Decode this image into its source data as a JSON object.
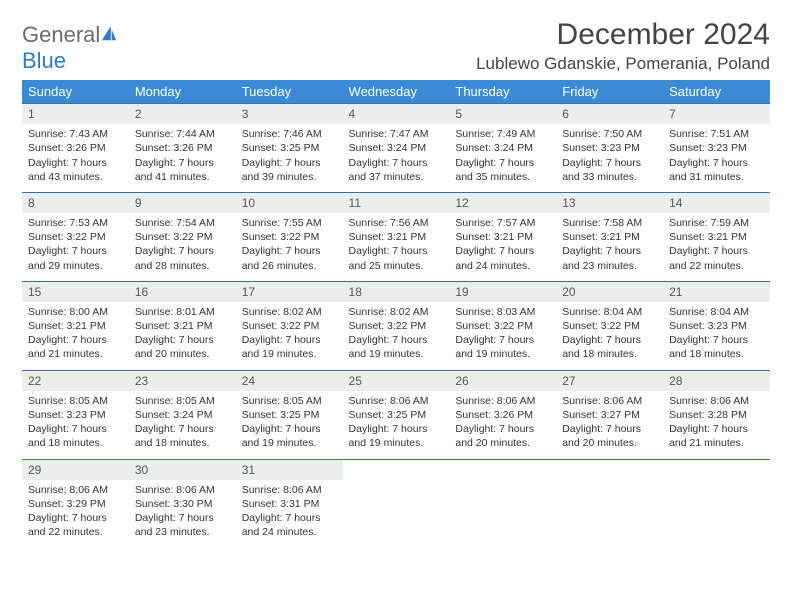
{
  "logo": {
    "part1": "General",
    "part2": "Blue"
  },
  "title": "December 2024",
  "location": "Lublewo Gdanskie, Pomerania, Poland",
  "colors": {
    "header_bg": "#3b8bd4",
    "header_text": "#ffffff",
    "daynum_bg": "#eceded",
    "row_border": "#3b6fa0",
    "logo_gray": "#6b6b6b",
    "logo_blue": "#2f7bc4",
    "text": "#333333"
  },
  "weekdays": [
    "Sunday",
    "Monday",
    "Tuesday",
    "Wednesday",
    "Thursday",
    "Friday",
    "Saturday"
  ],
  "weeks": [
    [
      {
        "n": "1",
        "sr": "7:43 AM",
        "ss": "3:26 PM",
        "dl": "7 hours and 43 minutes."
      },
      {
        "n": "2",
        "sr": "7:44 AM",
        "ss": "3:26 PM",
        "dl": "7 hours and 41 minutes."
      },
      {
        "n": "3",
        "sr": "7:46 AM",
        "ss": "3:25 PM",
        "dl": "7 hours and 39 minutes."
      },
      {
        "n": "4",
        "sr": "7:47 AM",
        "ss": "3:24 PM",
        "dl": "7 hours and 37 minutes."
      },
      {
        "n": "5",
        "sr": "7:49 AM",
        "ss": "3:24 PM",
        "dl": "7 hours and 35 minutes."
      },
      {
        "n": "6",
        "sr": "7:50 AM",
        "ss": "3:23 PM",
        "dl": "7 hours and 33 minutes."
      },
      {
        "n": "7",
        "sr": "7:51 AM",
        "ss": "3:23 PM",
        "dl": "7 hours and 31 minutes."
      }
    ],
    [
      {
        "n": "8",
        "sr": "7:53 AM",
        "ss": "3:22 PM",
        "dl": "7 hours and 29 minutes."
      },
      {
        "n": "9",
        "sr": "7:54 AM",
        "ss": "3:22 PM",
        "dl": "7 hours and 28 minutes."
      },
      {
        "n": "10",
        "sr": "7:55 AM",
        "ss": "3:22 PM",
        "dl": "7 hours and 26 minutes."
      },
      {
        "n": "11",
        "sr": "7:56 AM",
        "ss": "3:21 PM",
        "dl": "7 hours and 25 minutes."
      },
      {
        "n": "12",
        "sr": "7:57 AM",
        "ss": "3:21 PM",
        "dl": "7 hours and 24 minutes."
      },
      {
        "n": "13",
        "sr": "7:58 AM",
        "ss": "3:21 PM",
        "dl": "7 hours and 23 minutes."
      },
      {
        "n": "14",
        "sr": "7:59 AM",
        "ss": "3:21 PM",
        "dl": "7 hours and 22 minutes."
      }
    ],
    [
      {
        "n": "15",
        "sr": "8:00 AM",
        "ss": "3:21 PM",
        "dl": "7 hours and 21 minutes."
      },
      {
        "n": "16",
        "sr": "8:01 AM",
        "ss": "3:21 PM",
        "dl": "7 hours and 20 minutes."
      },
      {
        "n": "17",
        "sr": "8:02 AM",
        "ss": "3:22 PM",
        "dl": "7 hours and 19 minutes."
      },
      {
        "n": "18",
        "sr": "8:02 AM",
        "ss": "3:22 PM",
        "dl": "7 hours and 19 minutes."
      },
      {
        "n": "19",
        "sr": "8:03 AM",
        "ss": "3:22 PM",
        "dl": "7 hours and 19 minutes."
      },
      {
        "n": "20",
        "sr": "8:04 AM",
        "ss": "3:22 PM",
        "dl": "7 hours and 18 minutes."
      },
      {
        "n": "21",
        "sr": "8:04 AM",
        "ss": "3:23 PM",
        "dl": "7 hours and 18 minutes."
      }
    ],
    [
      {
        "n": "22",
        "sr": "8:05 AM",
        "ss": "3:23 PM",
        "dl": "7 hours and 18 minutes."
      },
      {
        "n": "23",
        "sr": "8:05 AM",
        "ss": "3:24 PM",
        "dl": "7 hours and 18 minutes."
      },
      {
        "n": "24",
        "sr": "8:05 AM",
        "ss": "3:25 PM",
        "dl": "7 hours and 19 minutes."
      },
      {
        "n": "25",
        "sr": "8:06 AM",
        "ss": "3:25 PM",
        "dl": "7 hours and 19 minutes."
      },
      {
        "n": "26",
        "sr": "8:06 AM",
        "ss": "3:26 PM",
        "dl": "7 hours and 20 minutes."
      },
      {
        "n": "27",
        "sr": "8:06 AM",
        "ss": "3:27 PM",
        "dl": "7 hours and 20 minutes."
      },
      {
        "n": "28",
        "sr": "8:06 AM",
        "ss": "3:28 PM",
        "dl": "7 hours and 21 minutes."
      }
    ],
    [
      {
        "n": "29",
        "sr": "8:06 AM",
        "ss": "3:29 PM",
        "dl": "7 hours and 22 minutes."
      },
      {
        "n": "30",
        "sr": "8:06 AM",
        "ss": "3:30 PM",
        "dl": "7 hours and 23 minutes."
      },
      {
        "n": "31",
        "sr": "8:06 AM",
        "ss": "3:31 PM",
        "dl": "7 hours and 24 minutes."
      },
      null,
      null,
      null,
      null
    ]
  ],
  "labels": {
    "sunrise": "Sunrise: ",
    "sunset": "Sunset: ",
    "daylight": "Daylight: "
  }
}
